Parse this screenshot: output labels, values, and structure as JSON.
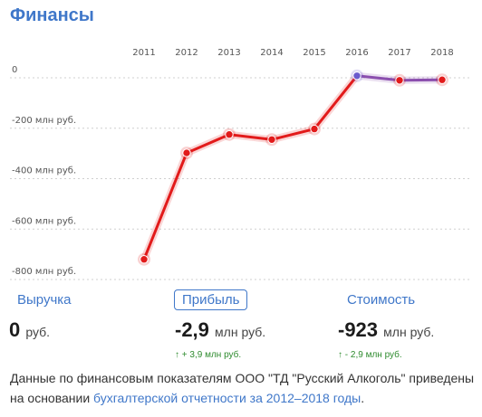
{
  "header": {
    "title": "Финансы"
  },
  "chart_data": {
    "type": "line",
    "x": [
      "2011",
      "2012",
      "2013",
      "2014",
      "2015",
      "2016",
      "2017",
      "2018"
    ],
    "series": [
      {
        "values": [
          -720,
          -298,
          -225,
          -245,
          -203,
          8,
          -10,
          -8
        ],
        "color": "#e21b1b"
      }
    ],
    "highlight_segment_color": "#8b4fae",
    "highlight_point_color": "#6a5acd",
    "y_ticks": [
      0,
      -200,
      -400,
      -600,
      -800
    ],
    "y_tick_labels": [
      "0",
      "-200 млн руб.",
      "-400 млн руб.",
      "-600 млн руб.",
      "-800 млн руб."
    ],
    "ylim": [
      -800,
      0
    ],
    "grid": true
  },
  "metrics": [
    {
      "label": "Выручка",
      "value": "0",
      "unit": "руб.",
      "change": ""
    },
    {
      "label": "Прибыль",
      "value": "-2,9",
      "unit": "млн руб.",
      "change": "↑ + 3,9 млн руб."
    },
    {
      "label": "Стоимость",
      "value": "-923",
      "unit": "млн руб.",
      "change": "↑ - 2,9 млн руб."
    }
  ],
  "footer": {
    "text": "Данные по финансовым показателям ООО \"ТД \"Русский Алкоголь\" приведены на основании ",
    "link": "бухгалтерской отчетности за 2012–2018 годы",
    "end": "."
  }
}
